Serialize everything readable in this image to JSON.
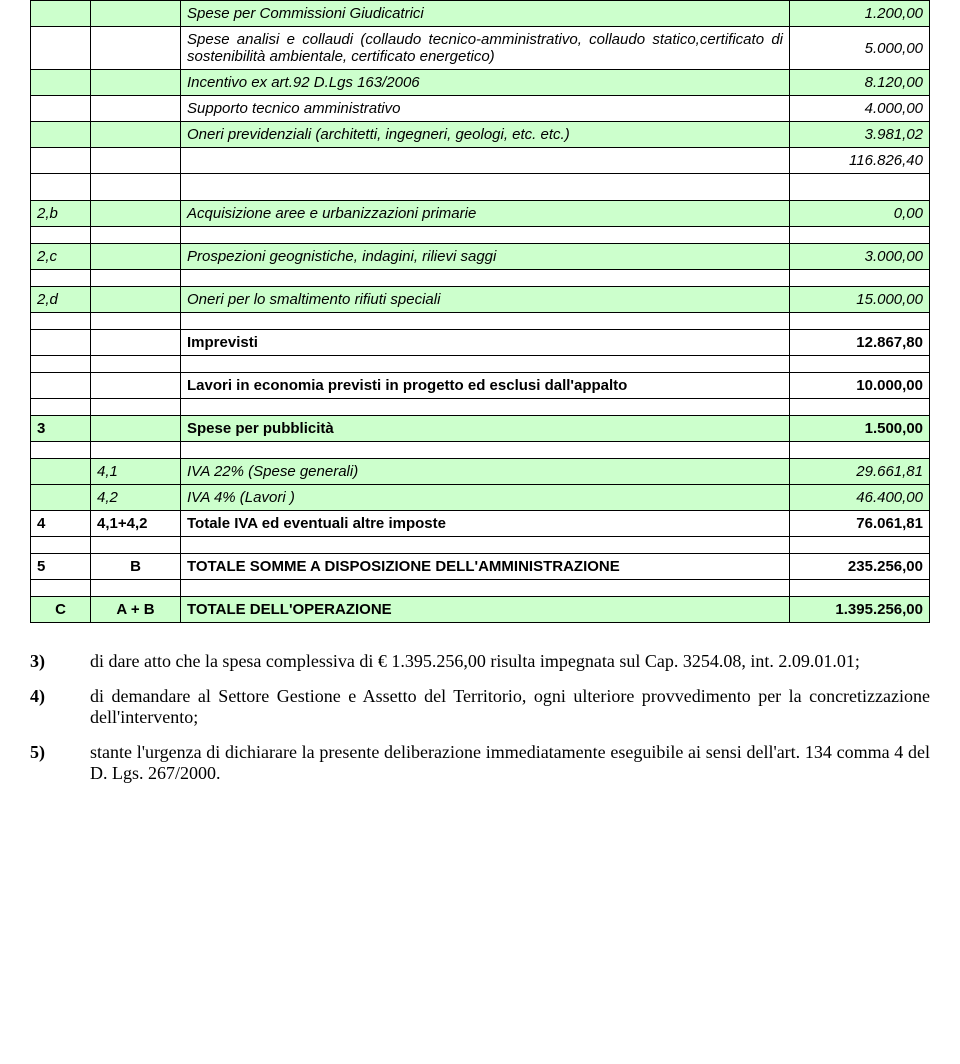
{
  "colors": {
    "row_highlight": "#ccffcc",
    "border": "#000000",
    "background": "#ffffff"
  },
  "table": {
    "rows": [
      {
        "type": "data",
        "green": true,
        "italic": true,
        "col1": "",
        "col2": "",
        "desc": "Spese per Commissioni Giudicatrici",
        "val": "1.200,00"
      },
      {
        "type": "data",
        "green": false,
        "italic": true,
        "col1": "",
        "col2": "",
        "desc": "Spese analisi e collaudi (collaudo tecnico-amministrativo, collaudo statico,certificato di sostenibilità ambientale, certificato energetico)",
        "val": "5.000,00"
      },
      {
        "type": "data",
        "green": true,
        "italic": true,
        "col1": "",
        "col2": "",
        "desc": "Incentivo ex art.92 D.Lgs 163/2006",
        "val": "8.120,00"
      },
      {
        "type": "data",
        "green": false,
        "italic": true,
        "col1": "",
        "col2": "",
        "desc": "Supporto tecnico amministrativo",
        "val": "4.000,00"
      },
      {
        "type": "data",
        "green": true,
        "italic": true,
        "col1": "",
        "col2": "",
        "desc": "Oneri previdenziali (architetti, ingegneri, geologi, etc. etc.)",
        "val": "3.981,02"
      },
      {
        "type": "data",
        "green": false,
        "italic": true,
        "col1": "",
        "col2": "",
        "desc": "",
        "val": "116.826,40"
      },
      {
        "type": "spacer"
      },
      {
        "type": "data",
        "green": true,
        "italic": true,
        "bold": false,
        "col1": "2,b",
        "col2": "",
        "desc": "Acquisizione aree e urbanizzazioni primarie",
        "val": "0,00"
      },
      {
        "type": "spacer-small"
      },
      {
        "type": "data",
        "green": true,
        "italic": true,
        "col1": "2,c",
        "col2": "",
        "desc": "Prospezioni geognistiche, indagini, rilievi saggi",
        "val": "3.000,00"
      },
      {
        "type": "spacer-small"
      },
      {
        "type": "data",
        "green": true,
        "italic": true,
        "col1": "2,d",
        "col2": "",
        "desc": "Oneri per lo smaltimento rifiuti speciali",
        "val": "15.000,00"
      },
      {
        "type": "spacer-small"
      },
      {
        "type": "data",
        "green": false,
        "italic": false,
        "bold": true,
        "col1": "",
        "col2": "",
        "desc": "Imprevisti",
        "val": "12.867,80"
      },
      {
        "type": "spacer-small"
      },
      {
        "type": "data",
        "green": false,
        "italic": false,
        "bold": true,
        "col1": "",
        "col2": "",
        "desc": "Lavori in economia previsti in progetto ed esclusi dall'appalto",
        "val": "10.000,00"
      },
      {
        "type": "spacer-small"
      },
      {
        "type": "data",
        "green": true,
        "italic": false,
        "bold": true,
        "col1": "3",
        "col2": "",
        "desc": "Spese per pubblicità",
        "val": "1.500,00"
      },
      {
        "type": "spacer-small"
      },
      {
        "type": "data",
        "green": true,
        "italic": true,
        "col1": "",
        "col2": "4,1",
        "desc": "IVA  22% (Spese generali)",
        "val": "29.661,81"
      },
      {
        "type": "data",
        "green": true,
        "italic": true,
        "col1": "",
        "col2": "4,2",
        "desc": "IVA 4% (Lavori )",
        "val": "46.400,00"
      },
      {
        "type": "data",
        "green": false,
        "italic": false,
        "bold": true,
        "col1": "4",
        "col2": "4,1+4,2",
        "desc": "Totale IVA ed eventuali altre imposte",
        "val": "76.061,81"
      },
      {
        "type": "spacer-small"
      },
      {
        "type": "data",
        "green": false,
        "italic": false,
        "bold": true,
        "col1": "5",
        "col2": "B",
        "col2_center": true,
        "desc": "TOTALE SOMME A DISPOSIZIONE DELL'AMMINISTRAZIONE",
        "val": "235.256,00"
      },
      {
        "type": "spacer-small"
      },
      {
        "type": "data",
        "green": true,
        "italic": false,
        "bold": true,
        "col1": "C",
        "col1_center": true,
        "col2": "A + B",
        "col2_center": true,
        "desc": "TOTALE DELL'OPERAZIONE",
        "val": "1.395.256,00"
      }
    ]
  },
  "notes": [
    {
      "num": "3)",
      "text": "di dare atto che la spesa complessiva di € 1.395.256,00 risulta impegnata sul Cap. 3254.08, int. 2.09.01.01;"
    },
    {
      "num": "4)",
      "text": "di demandare al Settore Gestione e Assetto del Territorio, ogni ulteriore provvedimento per la concretizzazione dell'intervento;"
    },
    {
      "num": "5)",
      "text": "stante l'urgenza di dichiarare la presente deliberazione immediatamente eseguibile ai sensi dell'art. 134 comma 4 del D. Lgs. 267/2000."
    }
  ]
}
